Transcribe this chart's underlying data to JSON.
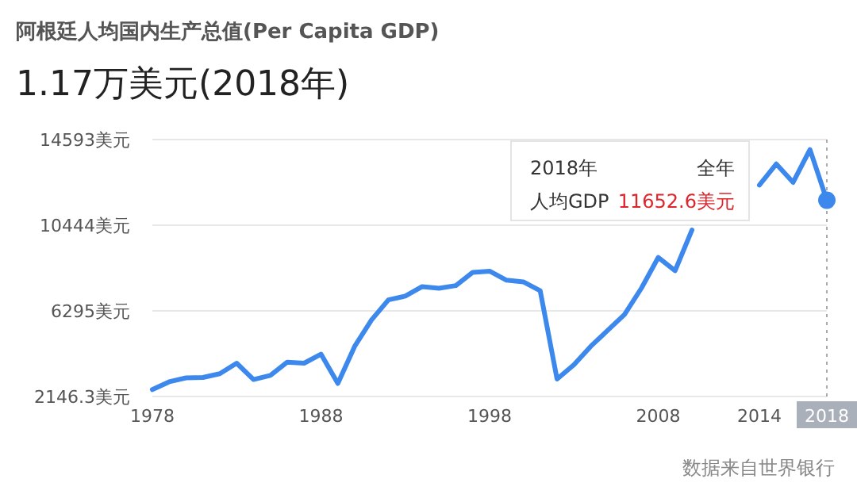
{
  "chart_data": {
    "type": "line",
    "title": "阿根廷人均国内生产总值(Per Capita GDP)",
    "subtitle": "1.17万美元(2018年)",
    "x": [
      1978,
      1979,
      1980,
      1981,
      1982,
      1983,
      1984,
      1985,
      1986,
      1987,
      1988,
      1989,
      1990,
      1991,
      1992,
      1993,
      1994,
      1995,
      1996,
      1997,
      1998,
      1999,
      2000,
      2001,
      2002,
      2003,
      2004,
      2005,
      2006,
      2007,
      2008,
      2009,
      2010,
      2011,
      2012,
      2013,
      2014,
      2015,
      2016,
      2017,
      2018
    ],
    "series": [
      {
        "color": "#3c88ec",
        "values": [
          2480,
          2860,
          3050,
          3070,
          3250,
          3760,
          2970,
          3170,
          3810,
          3760,
          4200,
          2780,
          4580,
          5860,
          6830,
          7010,
          7470,
          7390,
          7520,
          8160,
          8220,
          7780,
          7700,
          7270,
          2990,
          3680,
          4580,
          5350,
          6120,
          7390,
          8880,
          8240,
          10210,
          null,
          null,
          null,
          12390,
          13410,
          12520,
          14110,
          11652.6
        ]
      }
    ],
    "xlim": [
      1978,
      2018
    ],
    "xticks": [
      1978,
      1988,
      1998,
      2008,
      2014,
      2018
    ],
    "ylim": [
      2146.3,
      14593
    ],
    "yticks": [
      {
        "value": 2146.3,
        "label": "2146.3美元"
      },
      {
        "value": 6295,
        "label": "6295美元"
      },
      {
        "value": 10444,
        "label": "10444美元"
      },
      {
        "value": 14593,
        "label": "14593美元"
      }
    ],
    "grid": "y",
    "marker": "none",
    "line_style": "solid",
    "ref_lines": [
      {
        "axis": "x",
        "value": 2018,
        "line_style": "dotted",
        "color": "#aaaaaa"
      }
    ],
    "annotations": [
      "2018年",
      "全年",
      "人均GDP",
      "11652.6美元",
      "数据来自世界银行"
    ]
  }
}
